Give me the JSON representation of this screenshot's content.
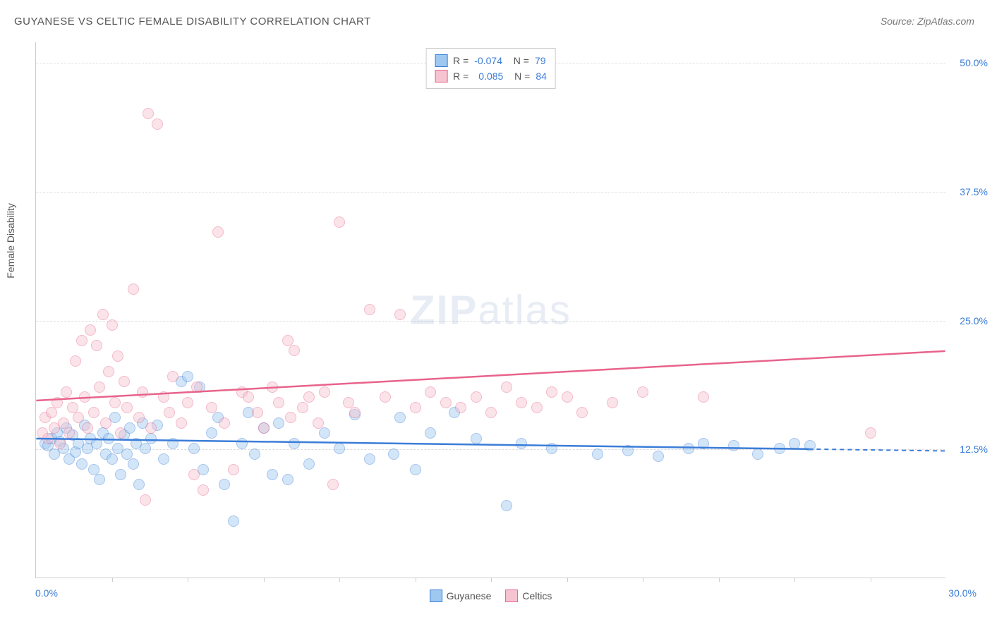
{
  "title": "GUYANESE VS CELTIC FEMALE DISABILITY CORRELATION CHART",
  "source": "Source: ZipAtlas.com",
  "y_axis_label": "Female Disability",
  "watermark": {
    "bold": "ZIP",
    "light": "atlas"
  },
  "chart": {
    "type": "scatter",
    "background_color": "#ffffff",
    "grid_color": "#dddddd",
    "axis_color": "#cccccc",
    "x_axis": {
      "min": 0,
      "max": 30,
      "left_label": "0.0%",
      "right_label": "30.0%",
      "tick_step": 2.5
    },
    "y_axis": {
      "min": 0,
      "max": 52,
      "gridlines": [
        {
          "value": 12.5,
          "label": "12.5%"
        },
        {
          "value": 25.0,
          "label": "25.0%"
        },
        {
          "value": 37.5,
          "label": "37.5%"
        },
        {
          "value": 50.0,
          "label": "50.0%"
        }
      ]
    },
    "marker_radius": 8,
    "marker_opacity": 0.45,
    "series": [
      {
        "name": "Guyanese",
        "fill_color": "#9ec8f0",
        "stroke_color": "#3b7dd8",
        "trend": {
          "y_start": 13.5,
          "y_end": 12.3,
          "solid_until_x": 25.5,
          "dashed": true
        },
        "stats": {
          "R": "-0.074",
          "N": "79"
        },
        "points": [
          [
            0.3,
            13.0
          ],
          [
            0.4,
            12.8
          ],
          [
            0.5,
            13.5
          ],
          [
            0.6,
            12.0
          ],
          [
            0.7,
            14.0
          ],
          [
            0.8,
            13.2
          ],
          [
            0.9,
            12.5
          ],
          [
            1.0,
            14.5
          ],
          [
            1.1,
            11.5
          ],
          [
            1.2,
            13.8
          ],
          [
            1.3,
            12.2
          ],
          [
            1.4,
            13.0
          ],
          [
            1.5,
            11.0
          ],
          [
            1.6,
            14.8
          ],
          [
            1.7,
            12.5
          ],
          [
            1.8,
            13.5
          ],
          [
            1.9,
            10.5
          ],
          [
            2.0,
            13.0
          ],
          [
            2.1,
            9.5
          ],
          [
            2.2,
            14.0
          ],
          [
            2.3,
            12.0
          ],
          [
            2.4,
            13.5
          ],
          [
            2.5,
            11.5
          ],
          [
            2.6,
            15.5
          ],
          [
            2.7,
            12.5
          ],
          [
            2.8,
            10.0
          ],
          [
            2.9,
            13.8
          ],
          [
            3.0,
            12.0
          ],
          [
            3.1,
            14.5
          ],
          [
            3.2,
            11.0
          ],
          [
            3.3,
            13.0
          ],
          [
            3.4,
            9.0
          ],
          [
            3.5,
            15.0
          ],
          [
            3.6,
            12.5
          ],
          [
            3.8,
            13.5
          ],
          [
            4.0,
            14.8
          ],
          [
            4.2,
            11.5
          ],
          [
            4.5,
            13.0
          ],
          [
            4.8,
            19.0
          ],
          [
            5.0,
            19.5
          ],
          [
            5.2,
            12.5
          ],
          [
            5.4,
            18.5
          ],
          [
            5.5,
            10.5
          ],
          [
            5.8,
            14.0
          ],
          [
            6.0,
            15.5
          ],
          [
            6.2,
            9.0
          ],
          [
            6.5,
            5.5
          ],
          [
            6.8,
            13.0
          ],
          [
            7.0,
            16.0
          ],
          [
            7.2,
            12.0
          ],
          [
            7.5,
            14.5
          ],
          [
            7.8,
            10.0
          ],
          [
            8.0,
            15.0
          ],
          [
            8.3,
            9.5
          ],
          [
            8.5,
            13.0
          ],
          [
            9.0,
            11.0
          ],
          [
            9.5,
            14.0
          ],
          [
            10.0,
            12.5
          ],
          [
            10.5,
            15.8
          ],
          [
            11.0,
            11.5
          ],
          [
            11.8,
            12.0
          ],
          [
            12.0,
            15.5
          ],
          [
            12.5,
            10.5
          ],
          [
            13.0,
            14.0
          ],
          [
            13.8,
            16.0
          ],
          [
            14.5,
            13.5
          ],
          [
            15.5,
            7.0
          ],
          [
            16.0,
            13.0
          ],
          [
            17.0,
            12.5
          ],
          [
            18.5,
            12.0
          ],
          [
            19.5,
            12.3
          ],
          [
            20.5,
            11.8
          ],
          [
            21.5,
            12.5
          ],
          [
            22.0,
            13.0
          ],
          [
            23.0,
            12.8
          ],
          [
            23.8,
            12.0
          ],
          [
            24.5,
            12.5
          ],
          [
            25.0,
            13.0
          ],
          [
            25.5,
            12.8
          ]
        ]
      },
      {
        "name": "Celtics",
        "fill_color": "#f5c4d0",
        "stroke_color": "#e8638c",
        "trend": {
          "y_start": 17.2,
          "y_end": 22.0,
          "solid_until_x": 30,
          "dashed": false
        },
        "stats": {
          "R": "0.085",
          "N": "84"
        },
        "points": [
          [
            0.2,
            14.0
          ],
          [
            0.3,
            15.5
          ],
          [
            0.4,
            13.5
          ],
          [
            0.5,
            16.0
          ],
          [
            0.6,
            14.5
          ],
          [
            0.7,
            17.0
          ],
          [
            0.8,
            13.0
          ],
          [
            0.9,
            15.0
          ],
          [
            1.0,
            18.0
          ],
          [
            1.1,
            14.0
          ],
          [
            1.2,
            16.5
          ],
          [
            1.3,
            21.0
          ],
          [
            1.4,
            15.5
          ],
          [
            1.5,
            23.0
          ],
          [
            1.6,
            17.5
          ],
          [
            1.7,
            14.5
          ],
          [
            1.8,
            24.0
          ],
          [
            1.9,
            16.0
          ],
          [
            2.0,
            22.5
          ],
          [
            2.1,
            18.5
          ],
          [
            2.2,
            25.5
          ],
          [
            2.3,
            15.0
          ],
          [
            2.4,
            20.0
          ],
          [
            2.5,
            24.5
          ],
          [
            2.6,
            17.0
          ],
          [
            2.7,
            21.5
          ],
          [
            2.8,
            14.0
          ],
          [
            2.9,
            19.0
          ],
          [
            3.0,
            16.5
          ],
          [
            3.2,
            28.0
          ],
          [
            3.4,
            15.5
          ],
          [
            3.5,
            18.0
          ],
          [
            3.6,
            7.5
          ],
          [
            3.7,
            45.0
          ],
          [
            3.8,
            14.5
          ],
          [
            4.0,
            44.0
          ],
          [
            4.2,
            17.5
          ],
          [
            4.4,
            16.0
          ],
          [
            4.5,
            19.5
          ],
          [
            4.8,
            15.0
          ],
          [
            5.0,
            17.0
          ],
          [
            5.2,
            10.0
          ],
          [
            5.3,
            18.5
          ],
          [
            5.5,
            8.5
          ],
          [
            5.8,
            16.5
          ],
          [
            6.0,
            33.5
          ],
          [
            6.2,
            15.0
          ],
          [
            6.5,
            10.5
          ],
          [
            6.8,
            18.0
          ],
          [
            7.0,
            17.5
          ],
          [
            7.3,
            16.0
          ],
          [
            7.5,
            14.5
          ],
          [
            7.8,
            18.5
          ],
          [
            8.0,
            17.0
          ],
          [
            8.3,
            23.0
          ],
          [
            8.4,
            15.5
          ],
          [
            8.5,
            22.0
          ],
          [
            8.8,
            16.5
          ],
          [
            9.0,
            17.5
          ],
          [
            9.3,
            15.0
          ],
          [
            9.5,
            18.0
          ],
          [
            9.8,
            9.0
          ],
          [
            10.0,
            34.5
          ],
          [
            10.3,
            17.0
          ],
          [
            10.5,
            16.0
          ],
          [
            11.0,
            26.0
          ],
          [
            11.5,
            17.5
          ],
          [
            12.0,
            25.5
          ],
          [
            12.5,
            16.5
          ],
          [
            13.0,
            18.0
          ],
          [
            13.5,
            17.0
          ],
          [
            14.0,
            16.5
          ],
          [
            14.5,
            17.5
          ],
          [
            15.0,
            16.0
          ],
          [
            15.5,
            18.5
          ],
          [
            16.0,
            17.0
          ],
          [
            16.5,
            16.5
          ],
          [
            17.0,
            18.0
          ],
          [
            17.5,
            17.5
          ],
          [
            18.0,
            16.0
          ],
          [
            19.0,
            17.0
          ],
          [
            20.0,
            18.0
          ],
          [
            22.0,
            17.5
          ],
          [
            27.5,
            14.0
          ]
        ]
      }
    ]
  }
}
